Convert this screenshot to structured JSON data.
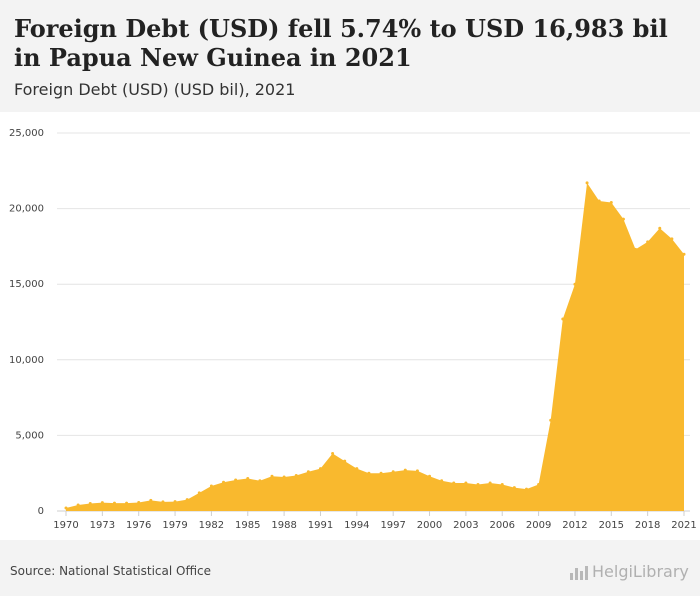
{
  "header": {
    "title": "Foreign Debt (USD) fell 5.74% to USD 16,983 bil in Papua New Guinea in 2021",
    "subtitle": "Foreign Debt (USD) (USD bil), 2021"
  },
  "footer": {
    "source": "Source: National Statistical Office",
    "logo_text": "HelgiLibrary"
  },
  "colors": {
    "area": "#f9b92e",
    "grid": "#e4e4e4"
  },
  "chart_data": {
    "type": "area",
    "title": "Foreign Debt (USD) fell 5.74% to USD 16,983 bil in Papua New Guinea in 2021",
    "subtitle": "Foreign Debt (USD) (USD bil), 2021",
    "xlabel": "",
    "ylabel": "",
    "ylim": [
      0,
      25000
    ],
    "yticks": [
      0,
      5000,
      10000,
      15000,
      20000,
      25000
    ],
    "ytick_labels": [
      "0",
      "5,000",
      "10,000",
      "15,000",
      "20,000",
      "25,000"
    ],
    "xtick_labels": [
      "1970",
      "1973",
      "1976",
      "1979",
      "1982",
      "1985",
      "1988",
      "1991",
      "1994",
      "1997",
      "2000",
      "2003",
      "2006",
      "2009",
      "2012",
      "2015",
      "2018",
      "2021"
    ],
    "grid": true,
    "x": [
      1970,
      1971,
      1972,
      1973,
      1974,
      1975,
      1976,
      1977,
      1978,
      1979,
      1980,
      1981,
      1982,
      1983,
      1984,
      1985,
      1986,
      1987,
      1988,
      1989,
      1990,
      1991,
      1992,
      1993,
      1994,
      1995,
      1996,
      1997,
      1998,
      1999,
      2000,
      2001,
      2002,
      2003,
      2004,
      2005,
      2006,
      2007,
      2008,
      2009,
      2010,
      2011,
      2012,
      2013,
      2014,
      2015,
      2016,
      2017,
      2018,
      2019,
      2020,
      2021
    ],
    "values": [
      200,
      400,
      500,
      550,
      520,
      520,
      560,
      700,
      600,
      620,
      750,
      1200,
      1650,
      1900,
      2050,
      2150,
      2000,
      2300,
      2250,
      2350,
      2600,
      2800,
      3800,
      3300,
      2800,
      2500,
      2500,
      2600,
      2700,
      2650,
      2300,
      2000,
      1850,
      1850,
      1750,
      1850,
      1750,
      1550,
      1450,
      1750,
      6000,
      12700,
      15000,
      21700,
      20500,
      20400,
      19300,
      17300,
      17800,
      18700,
      18000,
      16983
    ]
  }
}
